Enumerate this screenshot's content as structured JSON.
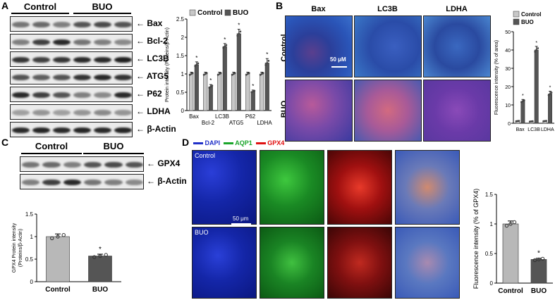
{
  "panels": {
    "A": "A",
    "B": "B",
    "C": "C",
    "D": "D"
  },
  "groups": {
    "control": "Control",
    "buo": "BUO"
  },
  "panel_a": {
    "blot_labels": [
      "Bax",
      "Bcl-2",
      "LC3B",
      "ATG5",
      "P62",
      "LDHA",
      "β-Actin"
    ],
    "chart_data": {
      "type": "bar",
      "categories": [
        "Bax",
        "Bcl-2",
        "LC3B",
        "ATG5",
        "P62",
        "LDHA"
      ],
      "series": [
        {
          "name": "Control",
          "values": [
            1.0,
            1.0,
            1.0,
            1.0,
            1.0,
            1.0
          ]
        },
        {
          "name": "BUO",
          "values": [
            1.25,
            0.65,
            1.75,
            2.1,
            0.52,
            1.3
          ]
        }
      ],
      "errors": [
        [
          0.05,
          0.05,
          0.05,
          0.05,
          0.05,
          0.05
        ],
        [
          0.08,
          0.06,
          0.08,
          0.12,
          0.04,
          0.12
        ]
      ],
      "significance": [
        "*",
        "*",
        "*",
        "*",
        "*",
        "*"
      ],
      "ylabel": "Protein intensity (Proteins/β-Actin)",
      "ylim": [
        0,
        2.5
      ],
      "yticks": [
        "0",
        "0.5",
        "1",
        "1.5",
        "2",
        "2.5"
      ],
      "legend_position": "top"
    }
  },
  "panel_b": {
    "columns": [
      "Bax",
      "LC3B",
      "LDHA"
    ],
    "rows": [
      "Control",
      "BUO"
    ],
    "scale_bar": "50 μM",
    "chart_data": {
      "type": "bar",
      "categories": [
        "Bax",
        "LC3B",
        "LDHA"
      ],
      "series": [
        {
          "name": "Control",
          "values": [
            1.2,
            1.0,
            1.2
          ]
        },
        {
          "name": "BUO",
          "values": [
            12,
            40,
            16
          ]
        }
      ],
      "errors": [
        [
          0.2,
          0.2,
          0.2
        ],
        [
          1,
          2,
          1.5
        ]
      ],
      "significance": [
        "*",
        "*",
        "*"
      ],
      "ylabel": "Fluorescence intensity (% of area)",
      "ylim": [
        0,
        50
      ],
      "yticks": [
        "0",
        "10",
        "20",
        "30",
        "40",
        "50"
      ],
      "legend_position": "top"
    }
  },
  "panel_c": {
    "blot_labels": [
      "GPX4",
      "β-Actin"
    ],
    "chart_data": {
      "type": "bar",
      "categories": [
        "Control",
        "BUO"
      ],
      "values": [
        1.0,
        0.57
      ],
      "errors": [
        0.06,
        0.04
      ],
      "significance": [
        "",
        "*"
      ],
      "ylabel": "GPX4 Protein intensity (Proteins/β-Actin)",
      "ylim": [
        0,
        1.5
      ],
      "yticks": [
        "0",
        "0.5",
        "1",
        "1.5"
      ]
    }
  },
  "panel_d": {
    "legend": [
      "DAPI",
      "AQP1",
      "GPX4"
    ],
    "legend_colors": [
      "#2030c8",
      "#1aa52a",
      "#e01010"
    ],
    "rows": [
      "Control",
      "BUO"
    ],
    "scale_bar": "50 μm",
    "chart_data": {
      "type": "bar",
      "categories": [
        "Control",
        "BUO"
      ],
      "values": [
        1.0,
        0.4
      ],
      "errors": [
        0.05,
        0.02
      ],
      "significance": [
        "",
        "*"
      ],
      "ylabel": "Fluorescence intensity (% of GPX4)",
      "ylim": [
        0,
        1.5
      ],
      "yticks": [
        "0",
        "0.5",
        "1",
        "1.5"
      ]
    }
  }
}
